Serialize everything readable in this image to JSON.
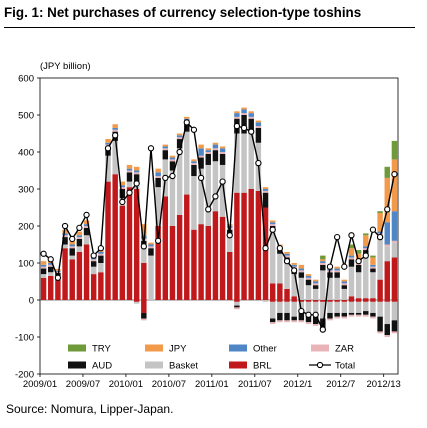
{
  "title": "Fig. 1: Net purchases of currency selection-type toshins",
  "source": "Source: Nomura, Lipper-Japan.",
  "colors": {
    "TRY": "#6f9a3a",
    "JPY": "#f29a4a",
    "Other": "#4f86c6",
    "ZAR": "#e8b4b8",
    "AUD": "#111111",
    "Basket": "#c4c4c4",
    "BRL": "#c0181b",
    "Total": "#000000"
  },
  "chart_data": {
    "type": "bar",
    "stacked": true,
    "unit_label": "(JPY billion)",
    "ylim": [
      -200,
      600
    ],
    "yticks": [
      -200,
      -100,
      0,
      100,
      200,
      300,
      400,
      500,
      600
    ],
    "xtick_labels": [
      "2009/01",
      "2009/07",
      "2010/01",
      "2010/07",
      "2011/01",
      "2011/07",
      "2012/1",
      "2012/7",
      "2012/13"
    ],
    "xtick_positions": [
      0,
      6,
      12,
      18,
      24,
      30,
      36,
      42,
      48
    ],
    "legend_position": "bottom",
    "legend_order": [
      "TRY",
      "JPY",
      "Other",
      "ZAR",
      "AUD",
      "Basket",
      "BRL",
      "Total"
    ],
    "categories": [
      "2009/01",
      "2009/02",
      "2009/03",
      "2009/04",
      "2009/05",
      "2009/06",
      "2009/07",
      "2009/08",
      "2009/09",
      "2009/10",
      "2009/11",
      "2009/12",
      "2010/01",
      "2010/02",
      "2010/03",
      "2010/04",
      "2010/05",
      "2010/06",
      "2010/07",
      "2010/08",
      "2010/09",
      "2010/10",
      "2010/11",
      "2010/12",
      "2011/01",
      "2011/02",
      "2011/03",
      "2011/04",
      "2011/05",
      "2011/06",
      "2011/07",
      "2011/08",
      "2011/09",
      "2011/10",
      "2011/11",
      "2011/12",
      "2012/01",
      "2012/02",
      "2012/03",
      "2012/04",
      "2012/05",
      "2012/06",
      "2012/07",
      "2012/08",
      "2012/09",
      "2012/10",
      "2012/11",
      "2012/12",
      "2013/01",
      "2013/02"
    ],
    "series": [
      {
        "name": "BRL",
        "values": [
          60,
          65,
          55,
          140,
          110,
          130,
          150,
          70,
          75,
          320,
          340,
          255,
          305,
          300,
          100,
          0,
          200,
          280,
          200,
          230,
          285,
          190,
          205,
          200,
          240,
          225,
          130,
          290,
          290,
          300,
          295,
          250,
          45,
          45,
          30,
          10,
          0,
          0,
          0,
          0,
          0,
          0,
          0,
          10,
          5,
          5,
          5,
          55,
          105,
          115
        ]
      },
      {
        "name": "Basket",
        "values": [
          10,
          10,
          10,
          10,
          10,
          15,
          25,
          20,
          25,
          70,
          90,
          20,
          15,
          15,
          40,
          120,
          105,
          100,
          150,
          180,
          170,
          145,
          150,
          165,
          135,
          140,
          40,
          160,
          160,
          150,
          130,
          0,
          140,
          80,
          70,
          60,
          60,
          40,
          30,
          80,
          60,
          60,
          30,
          80,
          70,
          110,
          70,
          110,
          40,
          40
        ]
      },
      {
        "name": "AUD",
        "values": [
          15,
          15,
          8,
          20,
          20,
          20,
          20,
          15,
          20,
          25,
          25,
          25,
          25,
          25,
          20,
          20,
          25,
          25,
          25,
          25,
          25,
          30,
          30,
          30,
          30,
          30,
          20,
          40,
          50,
          40,
          40,
          40,
          15,
          10,
          15,
          15,
          15,
          15,
          10,
          15,
          15,
          15,
          10,
          20,
          20,
          20,
          10,
          10,
          0,
          0
        ]
      },
      {
        "name": "ZAR",
        "values": [
          5,
          5,
          3,
          5,
          5,
          5,
          5,
          5,
          5,
          5,
          5,
          5,
          5,
          5,
          5,
          5,
          5,
          5,
          5,
          5,
          5,
          5,
          5,
          5,
          5,
          5,
          5,
          5,
          5,
          5,
          5,
          5,
          5,
          5,
          5,
          5,
          5,
          5,
          5,
          5,
          5,
          5,
          5,
          5,
          5,
          5,
          5,
          5,
          5,
          5
        ]
      },
      {
        "name": "Other",
        "values": [
          5,
          5,
          3,
          5,
          5,
          5,
          5,
          5,
          5,
          5,
          5,
          5,
          5,
          5,
          10,
          5,
          10,
          5,
          5,
          5,
          5,
          5,
          20,
          5,
          10,
          10,
          5,
          10,
          10,
          10,
          10,
          5,
          5,
          5,
          5,
          5,
          5,
          5,
          5,
          5,
          5,
          5,
          5,
          5,
          5,
          5,
          5,
          5,
          60,
          80
        ]
      },
      {
        "name": "JPY",
        "values": [
          10,
          10,
          5,
          10,
          10,
          10,
          10,
          10,
          10,
          10,
          10,
          10,
          10,
          10,
          30,
          5,
          10,
          5,
          5,
          5,
          5,
          5,
          10,
          5,
          5,
          5,
          5,
          5,
          5,
          5,
          5,
          5,
          5,
          5,
          5,
          5,
          10,
          5,
          5,
          5,
          5,
          5,
          5,
          20,
          20,
          30,
          20,
          50,
          120,
          140
        ]
      },
      {
        "name": "TRY",
        "values": [
          0,
          0,
          0,
          0,
          0,
          0,
          0,
          0,
          0,
          0,
          0,
          0,
          0,
          0,
          0,
          0,
          0,
          0,
          0,
          0,
          0,
          0,
          0,
          0,
          0,
          0,
          0,
          0,
          0,
          0,
          0,
          0,
          0,
          0,
          0,
          0,
          0,
          0,
          0,
          10,
          5,
          0,
          0,
          10,
          10,
          5,
          5,
          5,
          30,
          50
        ]
      },
      {
        "name": "Total",
        "type": "line",
        "values": [
          125,
          110,
          60,
          200,
          165,
          195,
          230,
          120,
          140,
          410,
          445,
          265,
          290,
          315,
          145,
          410,
          160,
          330,
          335,
          400,
          480,
          460,
          330,
          245,
          280,
          320,
          175,
          470,
          465,
          455,
          370,
          140,
          190,
          140,
          105,
          80,
          -30,
          -40,
          -40,
          -80,
          90,
          170,
          90,
          175,
          105,
          120,
          190,
          170,
          245,
          340
        ]
      }
    ],
    "negative_series": [
      {
        "name": "BRL",
        "values": [
          0,
          0,
          0,
          0,
          0,
          0,
          0,
          0,
          0,
          0,
          0,
          0,
          0,
          -5,
          -35,
          0,
          0,
          0,
          0,
          0,
          0,
          0,
          0,
          0,
          0,
          0,
          0,
          -5,
          0,
          0,
          0,
          0,
          -5,
          -5,
          -5,
          -5,
          -5,
          -5,
          -5,
          -5,
          -5,
          -5,
          -5,
          -5,
          -5,
          -5,
          -5,
          -5,
          -5,
          -5
        ]
      },
      {
        "name": "Basket",
        "values": [
          0,
          0,
          0,
          0,
          0,
          0,
          0,
          0,
          0,
          0,
          0,
          0,
          0,
          -5,
          0,
          0,
          0,
          0,
          0,
          0,
          0,
          0,
          0,
          0,
          0,
          0,
          0,
          -10,
          0,
          0,
          0,
          -5,
          -45,
          -30,
          -30,
          -40,
          -30,
          -35,
          -40,
          -45,
          -30,
          -30,
          -30,
          -30,
          -30,
          -25,
          -30,
          -40,
          -60,
          -50
        ]
      },
      {
        "name": "AUD",
        "values": [
          0,
          0,
          0,
          0,
          0,
          0,
          0,
          0,
          0,
          0,
          0,
          0,
          0,
          0,
          -15,
          0,
          0,
          0,
          0,
          0,
          0,
          0,
          0,
          0,
          0,
          0,
          0,
          -5,
          0,
          0,
          0,
          0,
          -10,
          -20,
          -20,
          -10,
          -20,
          -20,
          -20,
          -30,
          -15,
          -10,
          -10,
          -5,
          -5,
          -10,
          -10,
          -40,
          -30,
          -30
        ]
      },
      {
        "name": "ZAR",
        "values": [
          0,
          0,
          0,
          0,
          0,
          0,
          0,
          0,
          0,
          0,
          0,
          0,
          0,
          0,
          -5,
          0,
          0,
          0,
          0,
          0,
          0,
          0,
          0,
          0,
          0,
          0,
          0,
          -5,
          0,
          0,
          0,
          0,
          -5,
          -5,
          -5,
          -5,
          -5,
          -5,
          -5,
          -5,
          -5,
          -5,
          -5,
          -5,
          -5,
          -5,
          -5,
          -5,
          -5,
          -5
        ]
      }
    ]
  }
}
